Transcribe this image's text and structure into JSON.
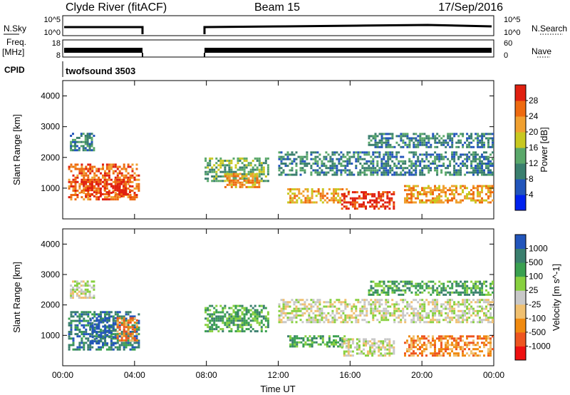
{
  "header": {
    "station": "Clyde River (fitACF)",
    "beam": "Beam 15",
    "date": "17/Sep/2016"
  },
  "strips": {
    "nsky_label": "N.Sky",
    "nsky_ticks": [
      "10^5",
      "10^0"
    ],
    "nsearch_label": "N.Search",
    "nsearch_ticks": [
      "10^5",
      "10^0"
    ],
    "freq_label": "Freq.",
    "freq_unit": "[MHz]",
    "freq_ticks": [
      "18",
      "8"
    ],
    "nave_label": "Nave",
    "nave_ticks": [
      "60",
      "0"
    ],
    "cpid_label": "CPID",
    "cpid_value": "twofsound 3503"
  },
  "colors": {
    "power_scale": [
      "#0022ee",
      "#2255bb",
      "#3a7f6e",
      "#5aa86a",
      "#c8c820",
      "#f0a030",
      "#ee6a10",
      "#e02010"
    ],
    "velocity_scale": [
      "#ee1010",
      "#ee5520",
      "#f08a10",
      "#f0c070",
      "#c8c8c8",
      "#88d040",
      "#3aa050",
      "#3a7f6e",
      "#2255bb"
    ]
  },
  "chart_data": [
    {
      "type": "heatmap",
      "ylabel": "Slant Range [km]",
      "yticks": [
        "1000",
        "2000",
        "3000",
        "4000"
      ],
      "ylim": [
        0,
        4500
      ],
      "xticks": [
        "00:00",
        "04:00",
        "08:00",
        "12:00",
        "16:00",
        "20:00",
        "00:00"
      ],
      "xlim_hours": [
        0,
        24
      ],
      "colorbar": {
        "label": "Power [dB]",
        "ticks": [
          "4",
          "8",
          "12",
          "16",
          "20",
          "24",
          "28"
        ]
      },
      "regions": [
        {
          "t0": 0.3,
          "t1": 4.3,
          "r0": 600,
          "r1": 1800,
          "level": 6
        },
        {
          "t0": 1.0,
          "t1": 3.8,
          "r0": 700,
          "r1": 1300,
          "level": 7
        },
        {
          "t0": 0.4,
          "t1": 1.8,
          "r0": 2200,
          "r1": 2800,
          "level": 2
        },
        {
          "t0": 7.9,
          "t1": 11.5,
          "r0": 1200,
          "r1": 2000,
          "level": 3
        },
        {
          "t0": 9.0,
          "t1": 11.0,
          "r0": 1000,
          "r1": 1500,
          "level": 5
        },
        {
          "t0": 12.0,
          "t1": 24.0,
          "r0": 1400,
          "r1": 2200,
          "level": 2
        },
        {
          "t0": 12.5,
          "t1": 16.0,
          "r0": 500,
          "r1": 1000,
          "level": 5
        },
        {
          "t0": 15.5,
          "t1": 18.5,
          "r0": 300,
          "r1": 900,
          "level": 7
        },
        {
          "t0": 19.0,
          "t1": 24.0,
          "r0": 500,
          "r1": 1100,
          "level": 5
        },
        {
          "t0": 17.0,
          "t1": 24.0,
          "r0": 2300,
          "r1": 2800,
          "level": 2
        }
      ]
    },
    {
      "type": "heatmap",
      "ylabel": "Slant Range [km]",
      "yticks": [
        "1000",
        "2000",
        "3000",
        "4000"
      ],
      "ylim": [
        0,
        4500
      ],
      "xticks": [
        "00:00",
        "04:00",
        "08:00",
        "12:00",
        "16:00",
        "20:00",
        "00:00"
      ],
      "xlabel": "Time UT",
      "xlim_hours": [
        0,
        24
      ],
      "colorbar": {
        "label": "Velocity [m s^-1]",
        "ticks": [
          "-1000",
          "-500",
          "-100",
          "-25",
          "25",
          "100",
          "500",
          "1000"
        ]
      },
      "regions": [
        {
          "t0": 0.3,
          "t1": 4.3,
          "r0": 500,
          "r1": 1800,
          "level": 7
        },
        {
          "t0": 1.5,
          "t1": 3.0,
          "r0": 700,
          "r1": 1600,
          "level": 8
        },
        {
          "t0": 3.0,
          "t1": 4.2,
          "r0": 800,
          "r1": 1600,
          "level": 2
        },
        {
          "t0": 0.4,
          "t1": 1.8,
          "r0": 2200,
          "r1": 2800,
          "level": 4
        },
        {
          "t0": 7.9,
          "t1": 11.5,
          "r0": 1100,
          "r1": 2000,
          "level": 6
        },
        {
          "t0": 12.0,
          "t1": 24.0,
          "r0": 1400,
          "r1": 2200,
          "level": 4
        },
        {
          "t0": 12.5,
          "t1": 16.0,
          "r0": 600,
          "r1": 1000,
          "level": 6
        },
        {
          "t0": 15.5,
          "t1": 18.5,
          "r0": 300,
          "r1": 900,
          "level": 4
        },
        {
          "t0": 19.0,
          "t1": 24.0,
          "r0": 300,
          "r1": 1000,
          "level": 2
        },
        {
          "t0": 17.0,
          "t1": 24.0,
          "r0": 2300,
          "r1": 2800,
          "level": 6
        }
      ]
    }
  ]
}
